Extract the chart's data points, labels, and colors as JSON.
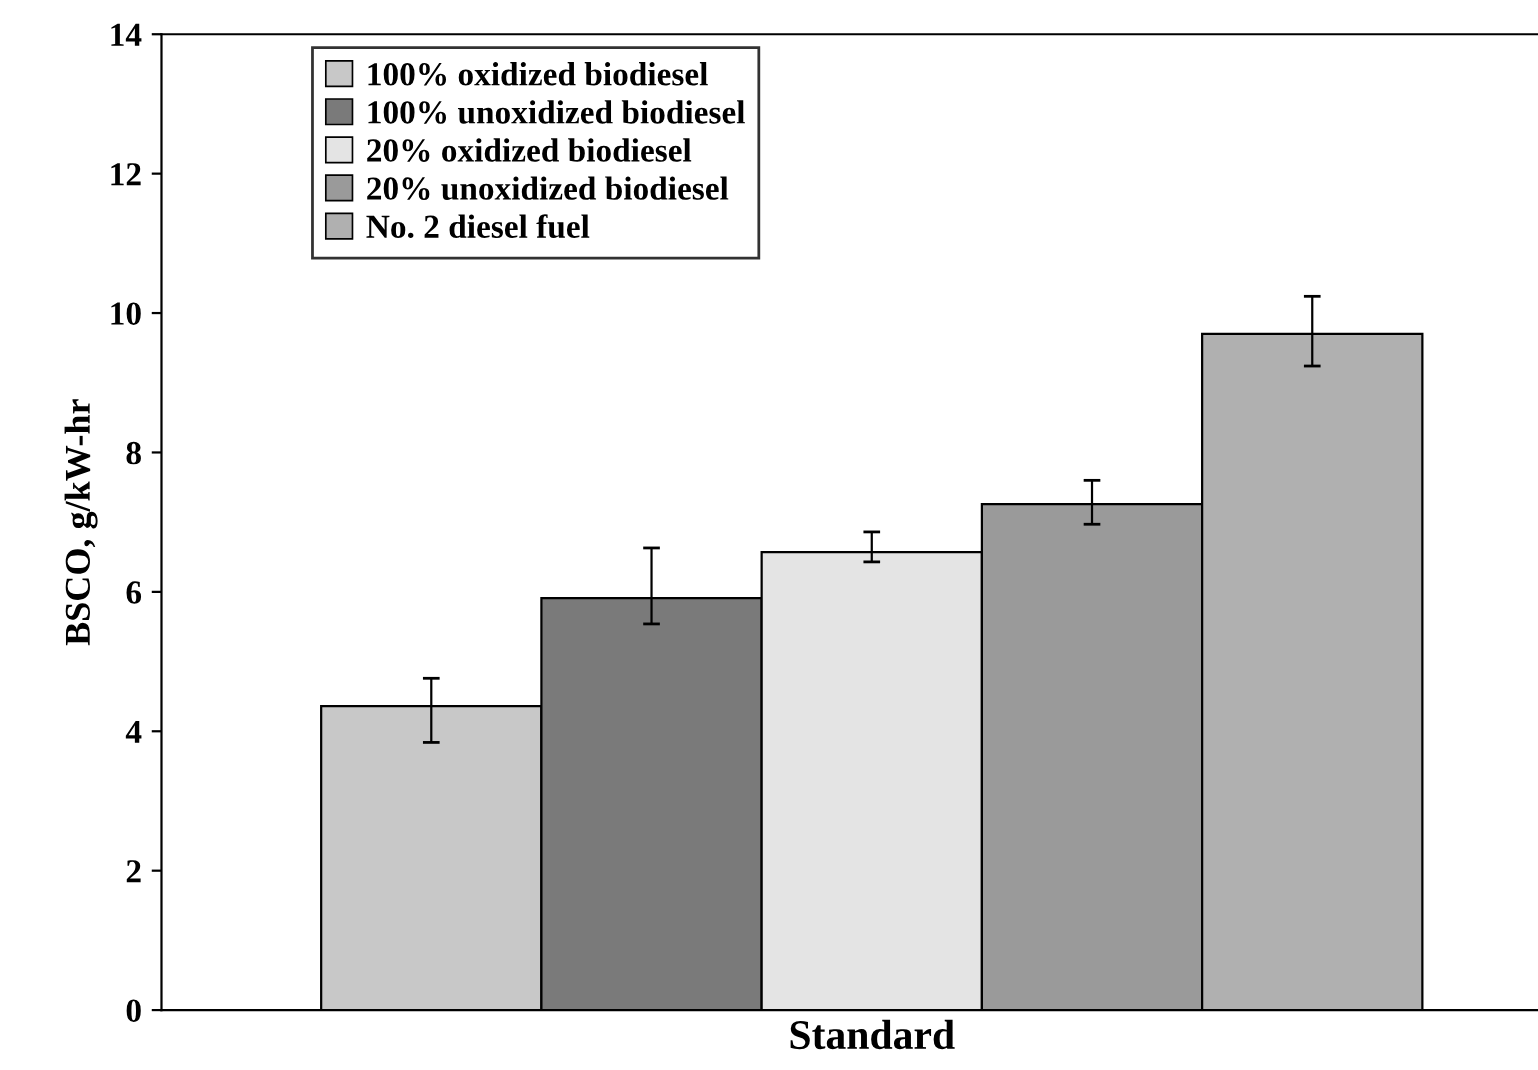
{
  "chart_data": {
    "type": "bar",
    "ylabel": "BSCO, g/kW-hr",
    "categories": [
      "Standard"
    ],
    "series": [
      {
        "name": "100% oxidized biodiesel",
        "color": "#c8c8c8",
        "values": [
          4.36
        ],
        "errors": [
          [
            3.84,
            4.76
          ]
        ]
      },
      {
        "name": "100% unoxidized biodiesel",
        "color": "#7a7a7a",
        "values": [
          5.91
        ],
        "errors": [
          [
            5.54,
            6.63
          ]
        ]
      },
      {
        "name": "20% oxidized biodiesel",
        "color": "#e4e4e4",
        "values": [
          6.57
        ],
        "errors": [
          [
            6.43,
            6.86
          ]
        ]
      },
      {
        "name": "20% unoxidized biodiesel",
        "color": "#9a9a9a",
        "values": [
          7.26
        ],
        "errors": [
          [
            6.97,
            7.6
          ]
        ]
      },
      {
        "name": "No. 2 diesel fuel",
        "color": "#b0b0b0",
        "values": [
          9.7
        ],
        "errors": [
          [
            9.24,
            10.24
          ]
        ]
      }
    ],
    "ylim": [
      0,
      14
    ],
    "yticks": [
      0,
      2,
      4,
      6,
      8,
      10,
      12,
      14
    ],
    "grid": false,
    "legend": "top left"
  }
}
